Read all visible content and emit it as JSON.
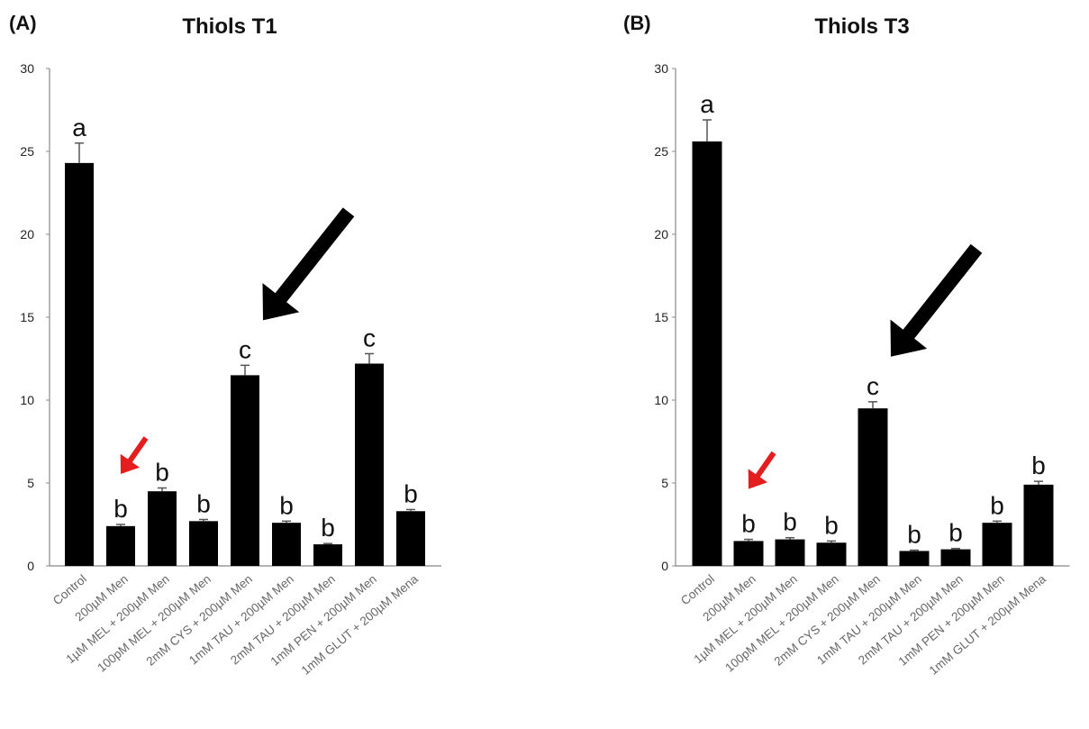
{
  "chart_data": [
    {
      "panel": "(A)",
      "type": "bar",
      "title": "Thiols T1",
      "xlabel": "",
      "ylabel": "",
      "ylim": [
        0,
        30
      ],
      "yticks": [
        0,
        5,
        10,
        15,
        20,
        25,
        30
      ],
      "categories": [
        "Control",
        "200µM Men",
        "1µM MEL + 200µM Men",
        "100pM MEL + 200µM Men",
        "2mM CYS + 200µM Men",
        "1mM TAU + 200µM Men",
        "2mM TAU + 200µM Men",
        "1mM PEN + 200µM Men",
        "1mM GLUT + 200µM Mena"
      ],
      "values": [
        24.3,
        2.4,
        4.5,
        2.7,
        11.5,
        2.6,
        1.3,
        12.2,
        3.3
      ],
      "errors": [
        1.2,
        0.1,
        0.2,
        0.1,
        0.6,
        0.1,
        0.05,
        0.6,
        0.1
      ],
      "letters": [
        "a",
        "b",
        "b",
        "b",
        "c",
        "b",
        "b",
        "c",
        "b"
      ],
      "bar_color": "#000000",
      "arrows": [
        {
          "color": "#000000",
          "points_to_index": 4,
          "size": "large"
        },
        {
          "color": "#e41e1e",
          "points_to_index": 1,
          "size": "small"
        }
      ]
    },
    {
      "panel": "(B)",
      "type": "bar",
      "title": "Thiols T3",
      "xlabel": "",
      "ylabel": "",
      "ylim": [
        0,
        30
      ],
      "yticks": [
        0,
        5,
        10,
        15,
        20,
        25,
        30
      ],
      "categories": [
        "Control",
        "200µM Men",
        "1µM MEL + 200µM Men",
        "100pM MEL + 200µM Men",
        "2mM CYS + 200µM Men",
        "1mM TAU + 200µM Men",
        "2mM TAU + 200µM Men",
        "1mM PEN + 200µM Men",
        "1mM GLUT + 200µM Mena"
      ],
      "values": [
        25.6,
        1.5,
        1.6,
        1.4,
        9.5,
        0.9,
        1.0,
        2.6,
        4.9
      ],
      "errors": [
        1.3,
        0.1,
        0.1,
        0.1,
        0.4,
        0.05,
        0.05,
        0.1,
        0.2
      ],
      "letters": [
        "a",
        "b",
        "b",
        "b",
        "c",
        "b",
        "b",
        "b",
        "b"
      ],
      "bar_color": "#000000",
      "arrows": [
        {
          "color": "#000000",
          "points_to_index": 4,
          "size": "large"
        },
        {
          "color": "#e41e1e",
          "points_to_index": 1,
          "size": "small"
        }
      ]
    }
  ]
}
